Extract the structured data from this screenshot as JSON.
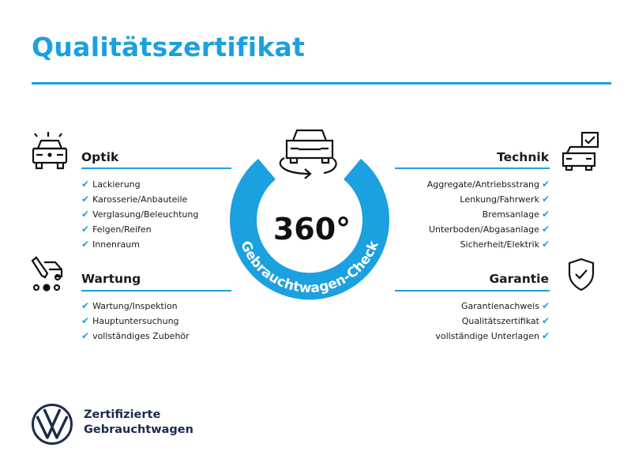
{
  "title": "Qualitätszertifikat",
  "accent_color": "#1ba0e0",
  "center": {
    "degrees": "360°",
    "ring_text": "Gebrauchtwagen-Check",
    "icon": "car-rotate-icon"
  },
  "sections": {
    "optik": {
      "title": "Optik",
      "icon": "car-lights-icon",
      "items": [
        "Lackierung",
        "Karosserie/Anbauteile",
        "Verglasung/Beleuchtung",
        "Felgen/Reifen",
        "Innenraum"
      ]
    },
    "wartung": {
      "title": "Wartung",
      "icon": "service-tool-icon",
      "items": [
        "Wartung/Inspektion",
        "Hauptuntersuchung",
        "vollständiges Zubehör"
      ]
    },
    "technik": {
      "title": "Technik",
      "icon": "car-checklist-icon",
      "items": [
        "Aggregate/Antriebsstrang",
        "Lenkung/Fahrwerk",
        "Bremsanlage",
        "Unterboden/Abgasanlage",
        "Sicherheit/Elektrik"
      ]
    },
    "garantie": {
      "title": "Garantie",
      "icon": "shield-check-icon",
      "items": [
        "Garantienachweis",
        "Qualitätszertifikat",
        "vollständige Unterlagen"
      ]
    }
  },
  "check_mark": "✔",
  "brand": {
    "line1": "Zertifizierte",
    "line2": "Gebrauchtwagen",
    "logo": "VW"
  }
}
